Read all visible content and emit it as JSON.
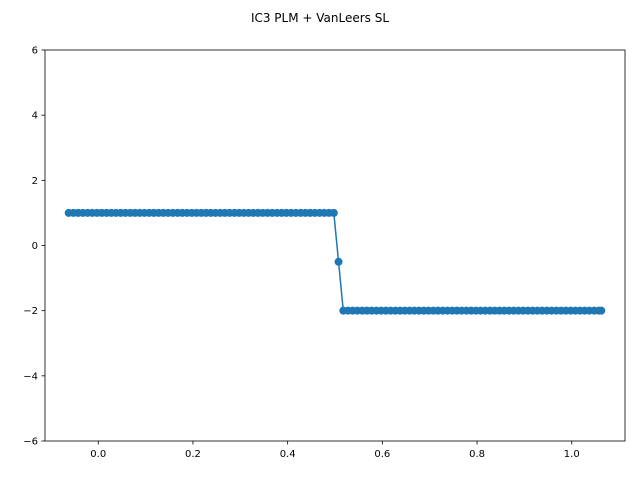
{
  "chart_data": {
    "type": "line",
    "title": "IC3 PLM + VanLeers SL",
    "xlabel": "",
    "ylabel": "",
    "xlim": [
      -0.1125,
      1.1125
    ],
    "ylim": [
      -6,
      6
    ],
    "xticks": [
      0.0,
      0.2,
      0.4,
      0.6,
      0.8,
      1.0
    ],
    "xtick_labels": [
      "0.0",
      "0.2",
      "0.4",
      "0.6",
      "0.8",
      "1.0"
    ],
    "yticks": [
      -6,
      -4,
      -2,
      0,
      2,
      4,
      6
    ],
    "ytick_labels": [
      "−6",
      "−4",
      "−2",
      "0",
      "2",
      "4",
      "6"
    ],
    "grid": false,
    "legend": "none",
    "series": [
      {
        "color": "#1f77b4",
        "marker": "circle",
        "x": [
          -0.0625,
          -0.0525,
          -0.0425,
          -0.0325,
          -0.0225,
          -0.0125,
          -0.0025,
          0.0075,
          0.0175,
          0.0275,
          0.0375,
          0.0475,
          0.0575,
          0.0675,
          0.0775,
          0.0875,
          0.0975,
          0.1075,
          0.1175,
          0.1275,
          0.1375,
          0.1475,
          0.1575,
          0.1675,
          0.1775,
          0.1875,
          0.1975,
          0.2075,
          0.2175,
          0.2275,
          0.2375,
          0.2475,
          0.2575,
          0.2675,
          0.2775,
          0.2875,
          0.2975,
          0.3075,
          0.3175,
          0.3275,
          0.3375,
          0.3475,
          0.3575,
          0.3675,
          0.3775,
          0.3875,
          0.3975,
          0.4075,
          0.4175,
          0.4275,
          0.4375,
          0.4475,
          0.4575,
          0.4675,
          0.4775,
          0.4875,
          0.4975,
          0.5075,
          0.5175,
          0.5275,
          0.5375,
          0.5475,
          0.5575,
          0.5675,
          0.5775,
          0.5875,
          0.5975,
          0.6075,
          0.6175,
          0.6275,
          0.6375,
          0.6475,
          0.6575,
          0.6675,
          0.6775,
          0.6875,
          0.6975,
          0.7075,
          0.7175,
          0.7275,
          0.7375,
          0.7475,
          0.7575,
          0.7675,
          0.7775,
          0.7875,
          0.7975,
          0.8075,
          0.8175,
          0.8275,
          0.8375,
          0.8475,
          0.8575,
          0.8675,
          0.8775,
          0.8875,
          0.8975,
          0.9075,
          0.9175,
          0.9275,
          0.9375,
          0.9475,
          0.9575,
          0.9675,
          0.9775,
          0.9875,
          0.9975,
          1.0075,
          1.0175,
          1.0275,
          1.0375,
          1.0475,
          1.0575,
          1.0625
        ],
        "y": [
          1,
          1,
          1,
          1,
          1,
          1,
          1,
          1,
          1,
          1,
          1,
          1,
          1,
          1,
          1,
          1,
          1,
          1,
          1,
          1,
          1,
          1,
          1,
          1,
          1,
          1,
          1,
          1,
          1,
          1,
          1,
          1,
          1,
          1,
          1,
          1,
          1,
          1,
          1,
          1,
          1,
          1,
          1,
          1,
          1,
          1,
          1,
          1,
          1,
          1,
          1,
          1,
          1,
          1,
          1,
          1,
          1,
          -0.5,
          -2,
          -2,
          -2,
          -2,
          -2,
          -2,
          -2,
          -2,
          -2,
          -2,
          -2,
          -2,
          -2,
          -2,
          -2,
          -2,
          -2,
          -2,
          -2,
          -2,
          -2,
          -2,
          -2,
          -2,
          -2,
          -2,
          -2,
          -2,
          -2,
          -2,
          -2,
          -2,
          -2,
          -2,
          -2,
          -2,
          -2,
          -2,
          -2,
          -2,
          -2,
          -2,
          -2,
          -2,
          -2,
          -2,
          -2,
          -2,
          -2,
          -2,
          -2,
          -2,
          -2,
          -2,
          -2,
          -2
        ]
      }
    ]
  }
}
